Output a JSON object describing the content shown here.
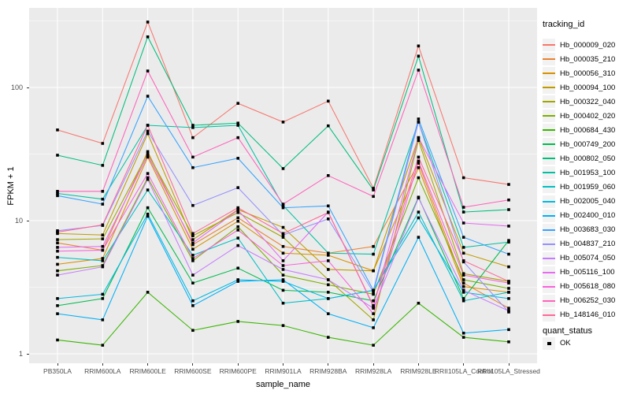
{
  "figure": {
    "background": "#FFFFFF",
    "panel_background": "#EBEBEB",
    "gridline_color": "#FFFFFF",
    "tick_label_color": "#4D4D4D",
    "axis_title_color": "#000000"
  },
  "chart_data": {
    "type": "line",
    "title": "",
    "xlabel": "sample_name",
    "ylabel": "FPKM + 1",
    "y_scale": "log10",
    "ylim": [
      0.93,
      380
    ],
    "y_ticks": [
      1,
      10,
      100
    ],
    "y_minor_ticks": [
      3.162,
      31.623,
      316.228
    ],
    "grid": "major-and-minor",
    "legend_position": "right",
    "point_marker": {
      "shape": "filled-square",
      "color": "#000000",
      "size": 3.6
    },
    "categories": [
      "PB350LA",
      "RRIM600LA",
      "RRIM600LE",
      "RRIM600SE",
      "RRIM600PE",
      "RRIM901LA",
      "RRIM928BA",
      "RRIM928LA",
      "RRIM928LE",
      "RRII105LA_Control",
      "RRII105LA_Stressed"
    ],
    "series": [
      {
        "name": "Hb_000009_020",
        "color": "#F8766D",
        "values": [
          48,
          38,
          310,
          42,
          76,
          55,
          79,
          17.5,
          205,
          21,
          18.7
        ]
      },
      {
        "name": "Hb_000035_210",
        "color": "#EA8331",
        "values": [
          6.8,
          6.0,
          33,
          6.6,
          10.5,
          6.4,
          5.7,
          6.4,
          27,
          3.4,
          2.2
        ]
      },
      {
        "name": "Hb_000056_310",
        "color": "#D89000",
        "values": [
          4.7,
          5.2,
          30,
          6.1,
          9.9,
          5.7,
          5.5,
          4.2,
          25,
          3.2,
          2.9
        ]
      },
      {
        "name": "Hb_000094_100",
        "color": "#C09B00",
        "values": [
          8.0,
          7.8,
          45,
          7.2,
          12.1,
          8.9,
          4.3,
          4.2,
          42,
          5.7,
          4.5
        ]
      },
      {
        "name": "Hb_000322_040",
        "color": "#A3A500",
        "values": [
          7.2,
          7.3,
          32,
          7.7,
          11.5,
          7.5,
          3.6,
          1.8,
          40,
          4.0,
          3.5
        ]
      },
      {
        "name": "Hb_000402_020",
        "color": "#7CAE00",
        "values": [
          4.2,
          4.6,
          21,
          5.0,
          9.0,
          3.9,
          3.3,
          2.8,
          21,
          3.6,
          3.1
        ]
      },
      {
        "name": "Hb_000684_430",
        "color": "#39B600",
        "values": [
          1.27,
          1.16,
          2.9,
          1.5,
          1.75,
          1.63,
          1.33,
          1.16,
          2.4,
          1.33,
          1.23
        ]
      },
      {
        "name": "Hb_000749_200",
        "color": "#00BB4E",
        "values": [
          2.3,
          2.6,
          12.5,
          3.4,
          4.4,
          3.0,
          2.9,
          2.5,
          15,
          2.6,
          7.1
        ]
      },
      {
        "name": "Hb_000802_050",
        "color": "#00BF7D",
        "values": [
          31,
          26,
          240,
          52,
          54,
          24.6,
          51.5,
          17,
          172,
          11.6,
          12.1
        ]
      },
      {
        "name": "Hb_001953_100",
        "color": "#00C1A3",
        "values": [
          16,
          14.5,
          52,
          50,
          52,
          13,
          5.7,
          5.6,
          55,
          6.3,
          6.9
        ]
      },
      {
        "name": "Hb_001959_060",
        "color": "#00BFC4",
        "values": [
          5.3,
          5.0,
          17,
          5.5,
          7.4,
          2.4,
          2.6,
          3.0,
          11.6,
          2.5,
          2.9
        ]
      },
      {
        "name": "Hb_002005_040",
        "color": "#00BAE0",
        "values": [
          2.6,
          2.8,
          11.2,
          2.5,
          3.6,
          3.5,
          2.6,
          3.0,
          10.5,
          2.9,
          2.6
        ]
      },
      {
        "name": "Hb_002400_010",
        "color": "#00B0F6",
        "values": [
          2.0,
          1.8,
          10.8,
          2.3,
          3.5,
          3.6,
          2.0,
          1.57,
          7.5,
          1.43,
          1.52
        ]
      },
      {
        "name": "Hb_003683_030",
        "color": "#35A2FF",
        "values": [
          15.4,
          13.3,
          86,
          25,
          29.4,
          12.5,
          12.9,
          3.0,
          58,
          7.5,
          5.6
        ]
      },
      {
        "name": "Hb_004837_210",
        "color": "#9590FF",
        "values": [
          8.4,
          9.2,
          47,
          13,
          17.7,
          7.8,
          10.3,
          2.9,
          55,
          4.9,
          2.06
        ]
      },
      {
        "name": "Hb_005074_050",
        "color": "#C77CFF",
        "values": [
          3.9,
          4.5,
          20.4,
          3.9,
          6.5,
          4.3,
          3.6,
          2.2,
          14.8,
          3.0,
          2.1
        ]
      },
      {
        "name": "Hb_005116_100",
        "color": "#E76BF3",
        "values": [
          6.3,
          6.4,
          31,
          6.8,
          12.0,
          5.0,
          11.6,
          2.26,
          42,
          9.6,
          9.1
        ]
      },
      {
        "name": "Hb_005618_080",
        "color": "#FA62DB",
        "values": [
          5.9,
          6.0,
          22.6,
          5.2,
          8.5,
          4.6,
          5.0,
          2.0,
          28,
          3.9,
          3.4
        ]
      },
      {
        "name": "Hb_006252_030",
        "color": "#FF62BC",
        "values": [
          16.6,
          16.6,
          133,
          30,
          42,
          13.3,
          21.8,
          15.2,
          135,
          12.6,
          14.3
        ]
      },
      {
        "name": "Hb_148146_010",
        "color": "#FF6A98",
        "values": [
          8.2,
          9.3,
          52,
          8.0,
          12.5,
          8.0,
          11.5,
          2.3,
          30,
          5.0,
          3.5
        ]
      }
    ]
  },
  "legend": {
    "tracking": {
      "title": "tracking_id"
    },
    "quant": {
      "title": "quant_status",
      "items": [
        {
          "label": "OK",
          "marker": "filled-square",
          "color": "#000000"
        }
      ]
    }
  }
}
